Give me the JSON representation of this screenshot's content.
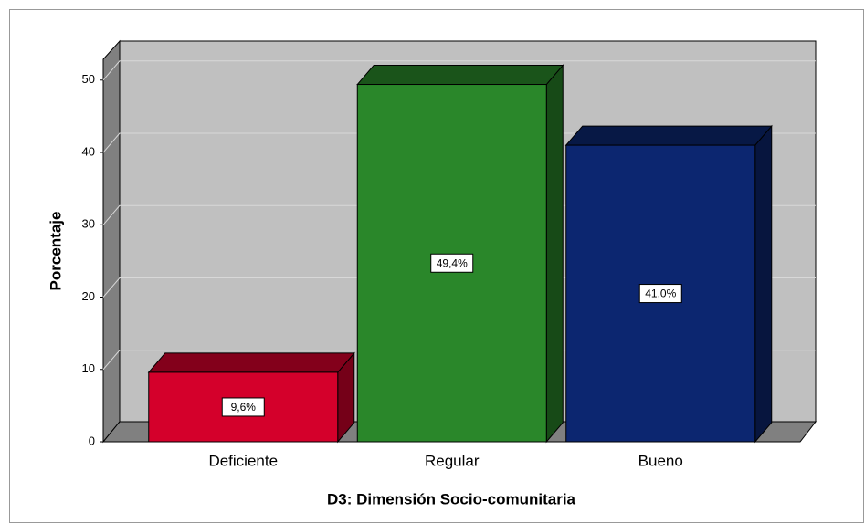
{
  "chart_data": {
    "type": "bar3d",
    "xlabel": "D3: Dimensión Socio-comunitaria",
    "ylabel": "Porcentaje",
    "categories": [
      "Deficiente",
      "Regular",
      "Bueno"
    ],
    "values": [
      9.6,
      49.4,
      41.0
    ],
    "value_labels": [
      "9,6%",
      "49,4%",
      "41,0%"
    ],
    "colors": [
      "#d4002b",
      "#2a872a",
      "#0c2670"
    ],
    "ylim": [
      0,
      53
    ],
    "yticks": [
      0,
      10,
      20,
      30,
      40,
      50
    ],
    "grid": true
  }
}
